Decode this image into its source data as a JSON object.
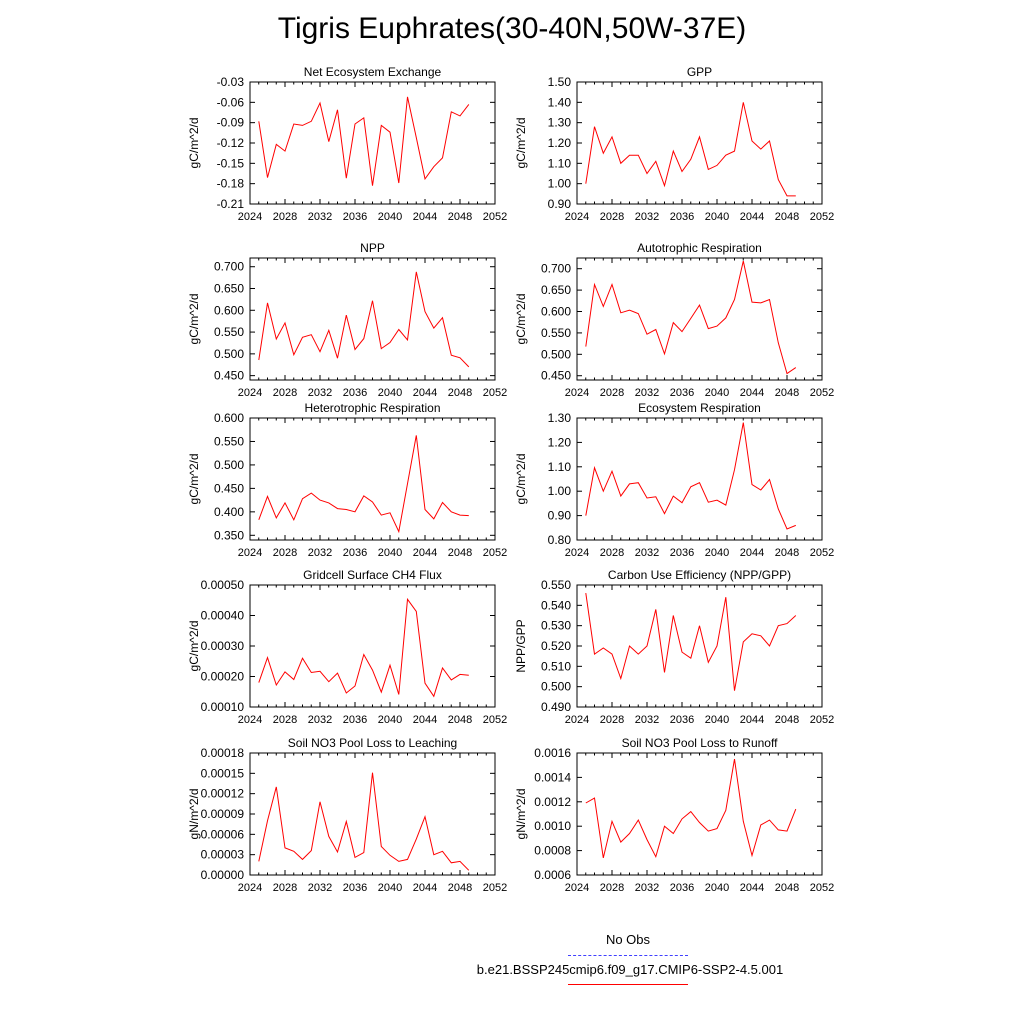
{
  "page": {
    "title": "Tigris Euphrates(30-40N,50W-37E)"
  },
  "legend": {
    "entries": [
      {
        "label": "No Obs",
        "color": "#4040ff",
        "style": "dashed"
      },
      {
        "label": "b.e21.BSSP245cmip6.f09_g17.CMIP6-SSP2-4.5.001",
        "color": "#ff0000",
        "style": "solid"
      }
    ]
  },
  "chart_data": [
    {
      "type": "line",
      "title": "Net Ecosystem Exchange",
      "ylabel": "gC/m^2/d",
      "xlim": [
        2024,
        2052
      ],
      "xticks": [
        2024,
        2028,
        2032,
        2036,
        2040,
        2044,
        2048,
        2052
      ],
      "ylim": [
        -0.21,
        -0.03
      ],
      "yticks": [
        "-0.03",
        "-0.06",
        "-0.09",
        "-0.12",
        "-0.15",
        "-0.18",
        "-0.21"
      ],
      "x": [
        2025,
        2026,
        2027,
        2028,
        2029,
        2030,
        2031,
        2032,
        2033,
        2034,
        2035,
        2036,
        2037,
        2038,
        2039,
        2040,
        2041,
        2042,
        2043,
        2044,
        2045,
        2046,
        2047,
        2048,
        2049
      ],
      "series": [
        {
          "color": "#ff0000",
          "values": [
            -0.088,
            -0.171,
            -0.122,
            -0.132,
            -0.092,
            -0.094,
            -0.088,
            -0.061,
            -0.118,
            -0.071,
            -0.172,
            -0.092,
            -0.083,
            -0.183,
            -0.094,
            -0.104,
            -0.179,
            -0.052,
            -0.112,
            -0.173,
            -0.155,
            -0.142,
            -0.074,
            -0.08,
            -0.063
          ]
        }
      ]
    },
    {
      "type": "line",
      "title": "GPP",
      "ylabel": "gC/m^2/d",
      "xlim": [
        2024,
        2052
      ],
      "xticks": [
        2024,
        2028,
        2032,
        2036,
        2040,
        2044,
        2048,
        2052
      ],
      "ylim": [
        0.9,
        1.5
      ],
      "yticks": [
        "1.50",
        "1.40",
        "1.30",
        "1.20",
        "1.10",
        "1.00",
        "0.90"
      ],
      "x": [
        2025,
        2026,
        2027,
        2028,
        2029,
        2030,
        2031,
        2032,
        2033,
        2034,
        2035,
        2036,
        2037,
        2038,
        2039,
        2040,
        2041,
        2042,
        2043,
        2044,
        2045,
        2046,
        2047,
        2048,
        2049
      ],
      "series": [
        {
          "color": "#ff0000",
          "values": [
            1.0,
            1.28,
            1.15,
            1.23,
            1.1,
            1.14,
            1.14,
            1.05,
            1.11,
            0.99,
            1.16,
            1.06,
            1.12,
            1.23,
            1.07,
            1.09,
            1.14,
            1.16,
            1.4,
            1.21,
            1.17,
            1.21,
            1.02,
            0.94,
            0.94
          ]
        }
      ]
    },
    {
      "type": "line",
      "title": "NPP",
      "ylabel": "gC/m^2/d",
      "xlim": [
        2024,
        2052
      ],
      "xticks": [
        2024,
        2028,
        2032,
        2036,
        2040,
        2044,
        2048,
        2052
      ],
      "ylim": [
        0.44,
        0.72
      ],
      "yticks": [
        "0.700",
        "0.650",
        "0.600",
        "0.550",
        "0.500",
        "0.450"
      ],
      "x": [
        2025,
        2026,
        2027,
        2028,
        2029,
        2030,
        2031,
        2032,
        2033,
        2034,
        2035,
        2036,
        2037,
        2038,
        2039,
        2040,
        2041,
        2042,
        2043,
        2044,
        2045,
        2046,
        2047,
        2048,
        2049
      ],
      "series": [
        {
          "color": "#ff0000",
          "values": [
            0.486,
            0.617,
            0.534,
            0.571,
            0.498,
            0.538,
            0.544,
            0.505,
            0.554,
            0.49,
            0.589,
            0.51,
            0.535,
            0.622,
            0.512,
            0.526,
            0.556,
            0.532,
            0.688,
            0.597,
            0.559,
            0.583,
            0.497,
            0.491,
            0.47
          ]
        }
      ]
    },
    {
      "type": "line",
      "title": "Autotrophic Respiration",
      "ylabel": "gC/m^2/d",
      "xlim": [
        2024,
        2052
      ],
      "xticks": [
        2024,
        2028,
        2032,
        2036,
        2040,
        2044,
        2048,
        2052
      ],
      "ylim": [
        0.44,
        0.725
      ],
      "yticks": [
        "0.700",
        "0.650",
        "0.600",
        "0.550",
        "0.500",
        "0.450"
      ],
      "x": [
        2025,
        2026,
        2027,
        2028,
        2029,
        2030,
        2031,
        2032,
        2033,
        2034,
        2035,
        2036,
        2037,
        2038,
        2039,
        2040,
        2041,
        2042,
        2043,
        2044,
        2045,
        2046,
        2047,
        2048,
        2049
      ],
      "series": [
        {
          "color": "#ff0000",
          "values": [
            0.518,
            0.663,
            0.612,
            0.663,
            0.597,
            0.603,
            0.595,
            0.547,
            0.558,
            0.501,
            0.574,
            0.553,
            0.584,
            0.615,
            0.56,
            0.566,
            0.585,
            0.628,
            0.718,
            0.622,
            0.62,
            0.628,
            0.527,
            0.455,
            0.469
          ]
        }
      ]
    },
    {
      "type": "line",
      "title": "Heterotrophic Respiration",
      "ylabel": "gC/m^2/d",
      "xlim": [
        2024,
        2052
      ],
      "xticks": [
        2024,
        2028,
        2032,
        2036,
        2040,
        2044,
        2048,
        2052
      ],
      "ylim": [
        0.34,
        0.6
      ],
      "yticks": [
        "0.600",
        "0.550",
        "0.500",
        "0.450",
        "0.400",
        "0.350"
      ],
      "x": [
        2025,
        2026,
        2027,
        2028,
        2029,
        2030,
        2031,
        2032,
        2033,
        2034,
        2035,
        2036,
        2037,
        2038,
        2039,
        2040,
        2041,
        2042,
        2043,
        2044,
        2045,
        2046,
        2047,
        2048,
        2049
      ],
      "series": [
        {
          "color": "#ff0000",
          "values": [
            0.383,
            0.433,
            0.387,
            0.419,
            0.383,
            0.428,
            0.44,
            0.425,
            0.419,
            0.407,
            0.405,
            0.4,
            0.434,
            0.421,
            0.393,
            0.398,
            0.358,
            0.46,
            0.563,
            0.405,
            0.385,
            0.42,
            0.4,
            0.393,
            0.392
          ]
        }
      ]
    },
    {
      "type": "line",
      "title": "Ecosystem Respiration",
      "ylabel": "gC/m^2/d",
      "xlim": [
        2024,
        2052
      ],
      "xticks": [
        2024,
        2028,
        2032,
        2036,
        2040,
        2044,
        2048,
        2052
      ],
      "ylim": [
        0.8,
        1.3
      ],
      "yticks": [
        "1.30",
        "1.20",
        "1.10",
        "1.00",
        "0.90",
        "0.80"
      ],
      "x": [
        2025,
        2026,
        2027,
        2028,
        2029,
        2030,
        2031,
        2032,
        2033,
        2034,
        2035,
        2036,
        2037,
        2038,
        2039,
        2040,
        2041,
        2042,
        2043,
        2044,
        2045,
        2046,
        2047,
        2048,
        2049
      ],
      "series": [
        {
          "color": "#ff0000",
          "values": [
            0.9,
            1.096,
            1.0,
            1.082,
            0.98,
            1.03,
            1.035,
            0.972,
            0.977,
            0.908,
            0.98,
            0.953,
            1.018,
            1.035,
            0.955,
            0.963,
            0.943,
            1.088,
            1.281,
            1.027,
            1.005,
            1.048,
            0.927,
            0.845,
            0.86
          ]
        }
      ]
    },
    {
      "type": "line",
      "title": "Gridcell Surface CH4 Flux",
      "ylabel": "gC/m^2/d",
      "xlim": [
        2024,
        2052
      ],
      "xticks": [
        2024,
        2028,
        2032,
        2036,
        2040,
        2044,
        2048,
        2052
      ],
      "ylim": [
        0.0001,
        0.0005
      ],
      "yticks": [
        "0.00050",
        "0.00040",
        "0.00030",
        "0.00020",
        "0.00010"
      ],
      "x": [
        2025,
        2026,
        2027,
        2028,
        2029,
        2030,
        2031,
        2032,
        2033,
        2034,
        2035,
        2036,
        2037,
        2038,
        2039,
        2040,
        2041,
        2042,
        2043,
        2044,
        2045,
        2046,
        2047,
        2048,
        2049
      ],
      "series": [
        {
          "color": "#ff0000",
          "values": [
            0.00018,
            0.000262,
            0.000172,
            0.000215,
            0.00019,
            0.00026,
            0.000213,
            0.000217,
            0.000183,
            0.000211,
            0.000146,
            0.000169,
            0.000272,
            0.000221,
            0.000149,
            0.000237,
            0.000141,
            0.000453,
            0.000413,
            0.000178,
            0.000135,
            0.000228,
            0.000189,
            0.000207,
            0.000204
          ]
        }
      ]
    },
    {
      "type": "line",
      "title": "Carbon Use Efficiency (NPP/GPP)",
      "ylabel": "NPP/GPP",
      "xlim": [
        2024,
        2052
      ],
      "xticks": [
        2024,
        2028,
        2032,
        2036,
        2040,
        2044,
        2048,
        2052
      ],
      "ylim": [
        0.49,
        0.55
      ],
      "yticks": [
        "0.550",
        "0.540",
        "0.530",
        "0.520",
        "0.510",
        "0.500",
        "0.490"
      ],
      "x": [
        2025,
        2026,
        2027,
        2028,
        2029,
        2030,
        2031,
        2032,
        2033,
        2034,
        2035,
        2036,
        2037,
        2038,
        2039,
        2040,
        2041,
        2042,
        2043,
        2044,
        2045,
        2046,
        2047,
        2048,
        2049
      ],
      "series": [
        {
          "color": "#ff0000",
          "values": [
            0.546,
            0.516,
            0.519,
            0.516,
            0.504,
            0.52,
            0.516,
            0.52,
            0.538,
            0.507,
            0.535,
            0.517,
            0.514,
            0.53,
            0.512,
            0.52,
            0.544,
            0.498,
            0.522,
            0.526,
            0.525,
            0.52,
            0.53,
            0.531,
            0.535
          ]
        }
      ]
    },
    {
      "type": "line",
      "title": "Soil NO3 Pool Loss to Leaching",
      "ylabel": "gN/m^2/d",
      "xlim": [
        2024,
        2052
      ],
      "xticks": [
        2024,
        2028,
        2032,
        2036,
        2040,
        2044,
        2048,
        2052
      ],
      "ylim": [
        0.0,
        0.00018
      ],
      "yticks": [
        "0.00018",
        "0.00015",
        "0.00012",
        "0.00009",
        "0.00006",
        "0.00003",
        "0.00000"
      ],
      "x": [
        2025,
        2026,
        2027,
        2028,
        2029,
        2030,
        2031,
        2032,
        2033,
        2034,
        2035,
        2036,
        2037,
        2038,
        2039,
        2040,
        2041,
        2042,
        2043,
        2044,
        2045,
        2046,
        2047,
        2048,
        2049
      ],
      "series": [
        {
          "color": "#ff0000",
          "values": [
            2e-05,
            8e-05,
            0.00013,
            4e-05,
            3.5e-05,
            2.3e-05,
            3.6e-05,
            0.000108,
            5.7e-05,
            3.4e-05,
            7.9e-05,
            2.6e-05,
            3.3e-05,
            0.000151,
            4.2e-05,
            2.9e-05,
            2e-05,
            2.3e-05,
            5.3e-05,
            8.6e-05,
            3e-05,
            3.5e-05,
            1.8e-05,
            2e-05,
            7e-06
          ]
        }
      ]
    },
    {
      "type": "line",
      "title": "Soil NO3 Pool Loss to Runoff",
      "ylabel": "gN/m^2/d",
      "xlim": [
        2024,
        2052
      ],
      "xticks": [
        2024,
        2028,
        2032,
        2036,
        2040,
        2044,
        2048,
        2052
      ],
      "ylim": [
        0.0006,
        0.0016
      ],
      "yticks": [
        "0.0016",
        "0.0014",
        "0.0012",
        "0.0010",
        "0.0008",
        "0.0006"
      ],
      "x": [
        2025,
        2026,
        2027,
        2028,
        2029,
        2030,
        2031,
        2032,
        2033,
        2034,
        2035,
        2036,
        2037,
        2038,
        2039,
        2040,
        2041,
        2042,
        2043,
        2044,
        2045,
        2046,
        2047,
        2048,
        2049
      ],
      "series": [
        {
          "color": "#ff0000",
          "values": [
            0.00119,
            0.00123,
            0.00074,
            0.00104,
            0.00087,
            0.00094,
            0.00105,
            0.00089,
            0.00075,
            0.001,
            0.00094,
            0.00106,
            0.00112,
            0.00103,
            0.00096,
            0.00098,
            0.00113,
            0.00155,
            0.00104,
            0.00076,
            0.00101,
            0.00105,
            0.00097,
            0.00096,
            0.00114
          ]
        }
      ]
    }
  ]
}
